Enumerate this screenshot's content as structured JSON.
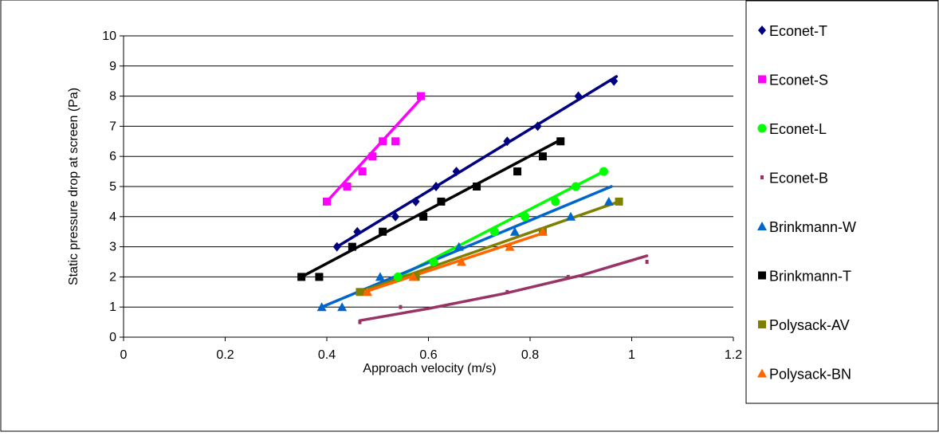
{
  "chart_data": {
    "type": "scatter",
    "title": "",
    "xlabel": "Approach velocity (m/s)",
    "ylabel": "Static pressure drop at screen (Pa)",
    "xlim": [
      0,
      1.2
    ],
    "ylim": [
      0,
      10
    ],
    "xticks": [
      "0",
      "0.2",
      "0.4",
      "0.6",
      "0.8",
      "1",
      "1.2"
    ],
    "yticks": [
      "0",
      "1",
      "2",
      "3",
      "4",
      "5",
      "6",
      "7",
      "8",
      "9",
      "10"
    ],
    "grid": "horizontal",
    "legend_position": "right",
    "series": [
      {
        "name": "Econet-T",
        "color": "#000080",
        "marker": "diamond",
        "points": [
          [
            0.42,
            3.0
          ],
          [
            0.46,
            3.5
          ],
          [
            0.535,
            4.0
          ],
          [
            0.575,
            4.5
          ],
          [
            0.615,
            5.0
          ],
          [
            0.655,
            5.5
          ],
          [
            0.755,
            6.5
          ],
          [
            0.815,
            7.0
          ],
          [
            0.895,
            8.0
          ],
          [
            0.965,
            8.5
          ]
        ],
        "trend": {
          "type": "linear",
          "x": [
            0.42,
            0.97
          ],
          "y": [
            3.0,
            8.65
          ]
        }
      },
      {
        "name": "Econet-S",
        "color": "#FF00FF",
        "marker": "square",
        "points": [
          [
            0.4,
            4.5
          ],
          [
            0.44,
            5.0
          ],
          [
            0.47,
            5.5
          ],
          [
            0.49,
            6.0
          ],
          [
            0.51,
            6.5
          ],
          [
            0.535,
            6.5
          ],
          [
            0.585,
            8.0
          ]
        ],
        "trend": {
          "type": "linear",
          "x": [
            0.4,
            0.59
          ],
          "y": [
            4.5,
            8.0
          ]
        }
      },
      {
        "name": "Econet-L",
        "color": "#00FF00",
        "marker": "circle",
        "points": [
          [
            0.54,
            2.0
          ],
          [
            0.61,
            2.5
          ],
          [
            0.73,
            3.5
          ],
          [
            0.79,
            4.0
          ],
          [
            0.85,
            4.5
          ],
          [
            0.89,
            5.0
          ],
          [
            0.945,
            5.5
          ]
        ],
        "trend": {
          "type": "linear",
          "x": [
            0.54,
            0.945
          ],
          "y": [
            2.0,
            5.5
          ]
        }
      },
      {
        "name": "Econet-B",
        "color": "#993366",
        "marker": "dash",
        "points": [
          [
            0.465,
            0.5
          ],
          [
            0.545,
            1.0
          ],
          [
            0.755,
            1.5
          ],
          [
            0.875,
            2.0
          ],
          [
            1.03,
            2.5
          ]
        ],
        "trend": {
          "type": "curve",
          "x": [
            0.465,
            0.6,
            0.75,
            0.9,
            1.03
          ],
          "y": [
            0.55,
            0.95,
            1.45,
            2.05,
            2.7
          ]
        }
      },
      {
        "name": "Brinkmann-W",
        "color": "#0066CC",
        "marker": "triangle",
        "points": [
          [
            0.39,
            1.0
          ],
          [
            0.43,
            1.0
          ],
          [
            0.505,
            2.0
          ],
          [
            0.66,
            3.0
          ],
          [
            0.77,
            3.5
          ],
          [
            0.88,
            4.0
          ],
          [
            0.955,
            4.5
          ]
        ],
        "trend": {
          "type": "linear",
          "x": [
            0.39,
            0.96
          ],
          "y": [
            1.0,
            5.0
          ]
        }
      },
      {
        "name": "Brinkmann-T",
        "color": "#000000",
        "marker": "square",
        "points": [
          [
            0.35,
            2.0
          ],
          [
            0.385,
            2.0
          ],
          [
            0.45,
            3.0
          ],
          [
            0.51,
            3.5
          ],
          [
            0.59,
            4.0
          ],
          [
            0.625,
            4.5
          ],
          [
            0.695,
            5.0
          ],
          [
            0.775,
            5.5
          ],
          [
            0.825,
            6.0
          ],
          [
            0.86,
            6.5
          ]
        ],
        "trend": {
          "type": "linear",
          "x": [
            0.35,
            0.86
          ],
          "y": [
            2.0,
            6.55
          ]
        }
      },
      {
        "name": "Polysack-AV",
        "color": "#808000",
        "marker": "square",
        "points": [
          [
            0.465,
            1.5
          ],
          [
            0.575,
            2.0
          ],
          [
            0.825,
            3.5
          ],
          [
            0.975,
            4.5
          ]
        ],
        "trend": {
          "type": "linear",
          "x": [
            0.465,
            0.975
          ],
          "y": [
            1.5,
            4.5
          ]
        }
      },
      {
        "name": "Polysack-BN",
        "color": "#FF6600",
        "marker": "triangle",
        "points": [
          [
            0.48,
            1.5
          ],
          [
            0.57,
            2.0
          ],
          [
            0.665,
            2.5
          ],
          [
            0.76,
            3.0
          ],
          [
            0.825,
            3.5
          ]
        ],
        "trend": {
          "type": "linear",
          "x": [
            0.465,
            0.825
          ],
          "y": [
            1.45,
            3.45
          ]
        }
      }
    ]
  }
}
